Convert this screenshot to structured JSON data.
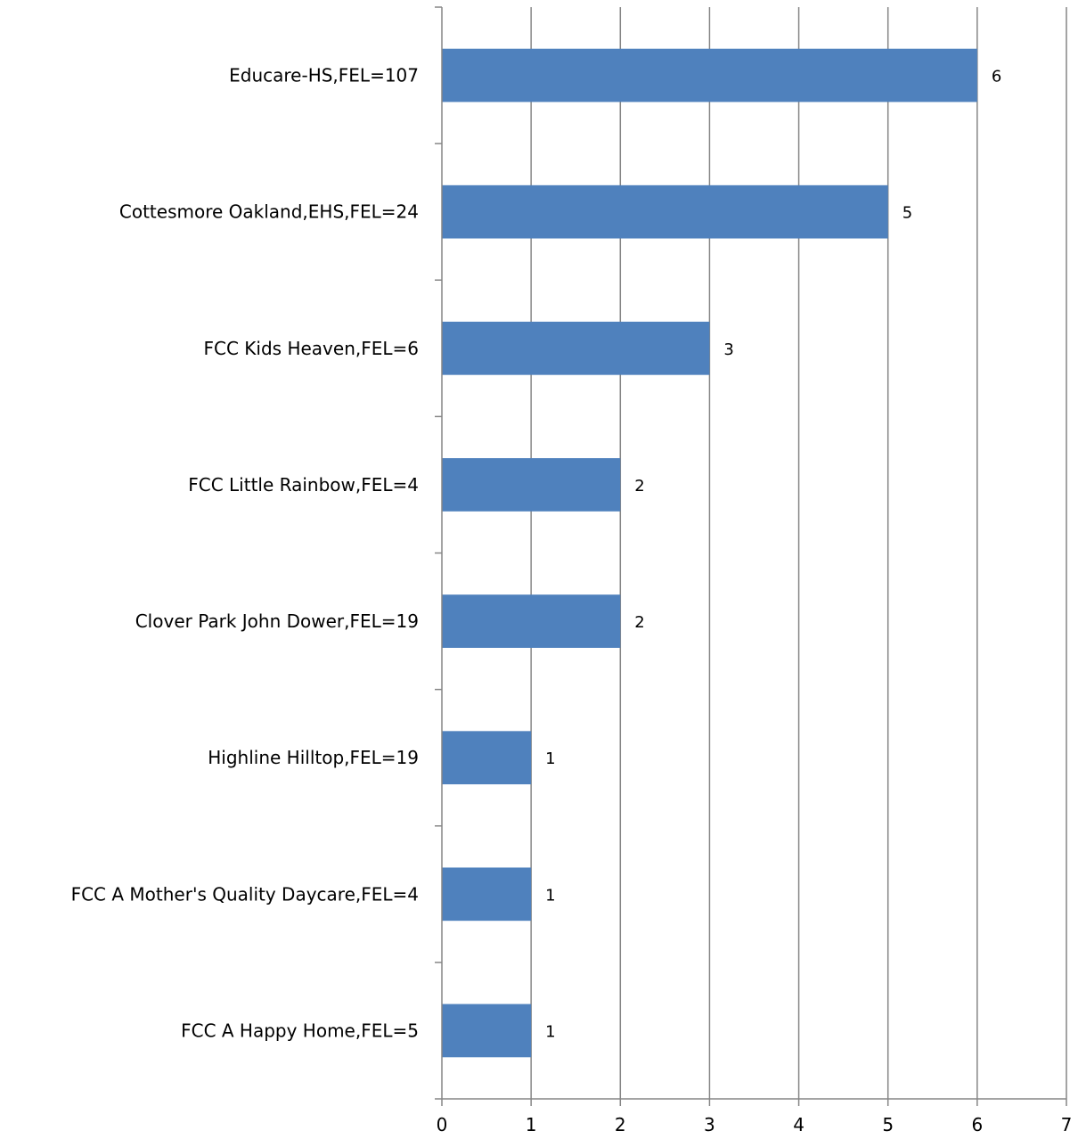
{
  "chart_data": {
    "type": "bar",
    "orientation": "horizontal",
    "categories": [
      "Educare-HS,FEL=107",
      "Cottesmore Oakland,EHS,FEL=24",
      "FCC Kids Heaven,FEL=6",
      "FCC Little Rainbow,FEL=4",
      "Clover Park John Dower,FEL=19",
      "Highline Hilltop,FEL=19",
      "FCC A Mother's Quality Daycare,FEL=4",
      "FCC A Happy Home,FEL=5"
    ],
    "values": [
      6,
      5,
      3,
      2,
      2,
      1,
      1,
      1
    ],
    "data_labels": [
      "6",
      "5",
      "3",
      "2",
      "2",
      "1",
      "1",
      "1"
    ],
    "xlim": [
      0,
      7
    ],
    "x_ticks": [
      "0",
      "1",
      "2",
      "3",
      "4",
      "5",
      "6",
      "7"
    ],
    "title": "",
    "xlabel": "",
    "ylabel": "",
    "grid": "vertical",
    "legend": "none",
    "colors": {
      "bar": "#4F81BD",
      "grid": "#868686",
      "axis": "#868686"
    }
  }
}
